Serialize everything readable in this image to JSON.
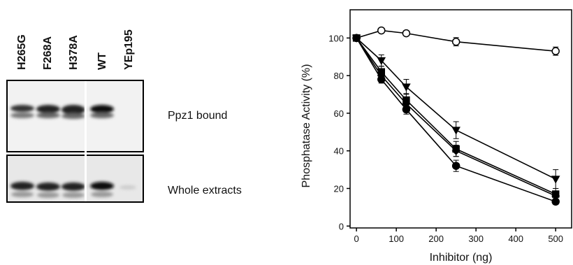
{
  "blot": {
    "lanes": [
      "H265G",
      "F268A",
      "H378A",
      "WT",
      "YEp195"
    ],
    "panels": [
      "Ppz1 bound",
      "Whole extracts"
    ]
  },
  "chart_data": {
    "type": "line",
    "x_label": "Inhibitor (ng)",
    "y_label": "Phosphatase Activity (%)",
    "x": [
      0,
      62.5,
      125,
      250,
      500
    ],
    "series": [
      {
        "color": "#000000",
        "marker": "open-circle",
        "values": [
          100,
          104,
          102.5,
          98,
          93
        ],
        "errors": [
          1,
          1,
          1.2,
          2.2,
          2.2
        ]
      },
      {
        "color": "#000000",
        "marker": "triangle",
        "values": [
          100,
          88,
          74,
          51,
          25
        ],
        "errors": [
          1,
          3,
          4,
          4.5,
          5
        ]
      },
      {
        "color": "#000000",
        "marker": "square",
        "values": [
          100,
          82,
          67,
          41,
          17
        ],
        "errors": [
          1,
          3,
          3.5,
          4,
          3
        ]
      },
      {
        "color": "#000000",
        "marker": "diamond",
        "values": [
          100,
          80,
          65,
          40,
          16
        ],
        "errors": [
          1,
          3,
          3,
          3,
          2
        ]
      },
      {
        "color": "#000000",
        "marker": "circle",
        "values": [
          100,
          78,
          62,
          32,
          13
        ],
        "errors": [
          1,
          2,
          2.5,
          3,
          1.5
        ]
      }
    ],
    "xlim": [
      -16,
      540
    ],
    "ylim": [
      -1,
      115
    ],
    "xticks": [
      0,
      100,
      200,
      300,
      400,
      500
    ],
    "yticks": [
      0,
      20,
      40,
      60,
      80,
      100
    ]
  }
}
